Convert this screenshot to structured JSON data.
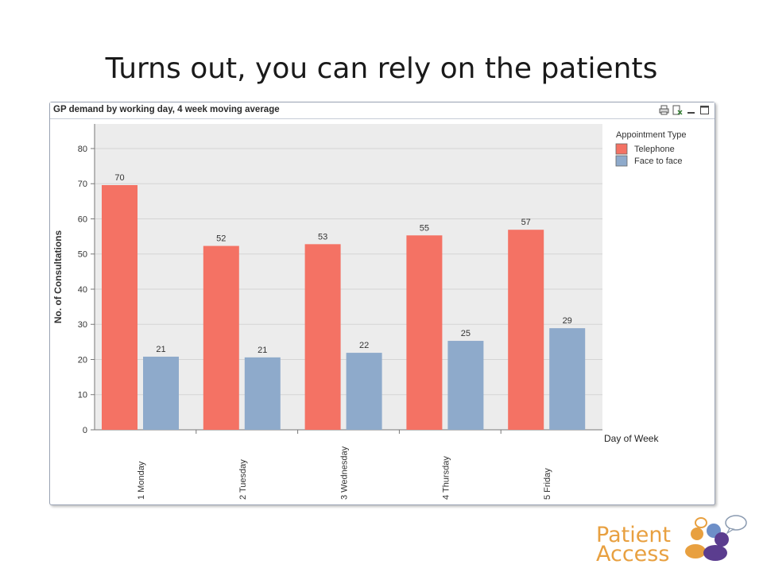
{
  "slide": {
    "title": "Turns out, you can rely on the patients"
  },
  "panel": {
    "caption": "GP demand by working day, 4 week moving average",
    "icons": [
      "print-icon",
      "export-excel-icon",
      "minimize-icon",
      "maximize-icon"
    ]
  },
  "colors": {
    "telephone": "#f47264",
    "face_to_face": "#8eaacb",
    "plot_background": "#ececec",
    "grid": "#d4d4d4",
    "logo_orange": "#e8a040",
    "logo_purple": "#5b3d8f"
  },
  "chart_data": {
    "type": "bar",
    "title": "GP demand by working day, 4 week moving average",
    "xlabel": "Day of Week",
    "ylabel": "No. of Consultations",
    "categories": [
      "1 Monday",
      "2 Tuesday",
      "3 Wednesday",
      "4 Thursday",
      "5 Friday"
    ],
    "series": [
      {
        "name": "Telephone",
        "values": [
          70,
          52,
          53,
          55,
          57
        ],
        "exact": [
          69.6,
          52.3,
          52.8,
          55.3,
          56.9
        ]
      },
      {
        "name": "Face to face",
        "values": [
          21,
          21,
          22,
          25,
          29
        ],
        "exact": [
          20.8,
          20.6,
          21.9,
          25.3,
          28.9
        ]
      }
    ],
    "ylim": [
      0,
      87
    ],
    "yticks": [
      0,
      10,
      20,
      30,
      40,
      50,
      60,
      70,
      80
    ],
    "grid": true,
    "legend": {
      "title": "Appointment Type",
      "position": "right"
    }
  },
  "logo": {
    "line1": "Patient",
    "line2": "Access"
  }
}
